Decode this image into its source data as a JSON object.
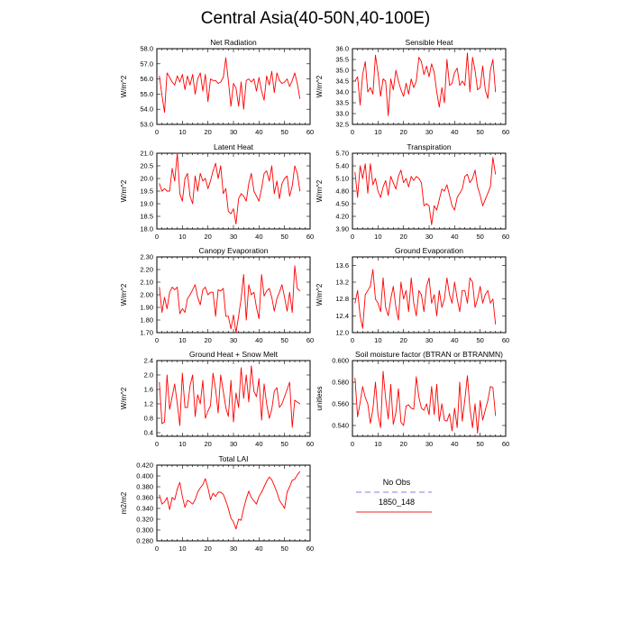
{
  "title": "Central Asia(40-50N,40-100E)",
  "legend": {
    "items": [
      {
        "label": "No Obs",
        "color": "#9999ee",
        "style": "dashed"
      },
      {
        "label": "1850_148",
        "color": "#ee5555",
        "style": "solid"
      }
    ]
  },
  "line_color": "#ff0000",
  "chart_data": [
    {
      "type": "line",
      "title": "Net Radiation",
      "xlabel": "",
      "ylabel": "W/m^2",
      "xlim": [
        0,
        60
      ],
      "ylim": [
        53.0,
        58.0
      ],
      "xticks": [
        "0",
        "10",
        "20",
        "30",
        "40",
        "50",
        "60"
      ],
      "yticks": [
        "53.0",
        "54.0",
        "55.0",
        "56.0",
        "57.0",
        "58.0"
      ],
      "series": [
        {
          "values": [
            56.2,
            54.9,
            53.8,
            56.4,
            56.1,
            55.8,
            55.6,
            56.2,
            55.8,
            56.3,
            55.3,
            56.2,
            55.6,
            56.3,
            55.0,
            56.0,
            56.4,
            55.2,
            56.3,
            54.5,
            56.0,
            55.9,
            55.9,
            55.7,
            55.8,
            56.1,
            57.4,
            55.9,
            54.2,
            55.7,
            55.4,
            54.2,
            55.8,
            54.0,
            55.9,
            56.0,
            55.8,
            56.0,
            55.2,
            56.1,
            55.2,
            54.6,
            56.2,
            55.6,
            56.5,
            55.1,
            56.4,
            55.9,
            55.7,
            55.8,
            56.0,
            55.5,
            55.9,
            56.4,
            55.7,
            54.7
          ]
        }
      ]
    },
    {
      "type": "line",
      "title": "Sensible Heat",
      "xlabel": "",
      "ylabel": "W/m^2",
      "xlim": [
        0,
        60
      ],
      "ylim": [
        32.5,
        36.0
      ],
      "xticks": [
        "0",
        "10",
        "20",
        "30",
        "40",
        "50",
        "60"
      ],
      "yticks": [
        "32.5",
        "33.0",
        "33.5",
        "34.0",
        "34.5",
        "35.0",
        "35.5",
        "36.0"
      ],
      "series": [
        {
          "values": [
            34.5,
            34.7,
            33.4,
            34.8,
            35.4,
            34.0,
            34.2,
            33.9,
            35.7,
            34.9,
            33.8,
            34.6,
            34.5,
            32.9,
            34.6,
            34.1,
            35.0,
            34.5,
            34.1,
            33.8,
            34.4,
            33.9,
            34.6,
            34.2,
            34.5,
            35.6,
            35.4,
            34.8,
            35.2,
            34.7,
            35.3,
            34.9,
            34.0,
            33.3,
            34.2,
            33.5,
            35.5,
            34.3,
            34.4,
            34.9,
            35.1,
            34.3,
            34.5,
            34.3,
            35.8,
            34.0,
            35.6,
            35.0,
            34.1,
            34.2,
            35.2,
            34.1,
            33.7,
            35.0,
            35.5,
            34.0
          ]
        }
      ]
    },
    {
      "type": "line",
      "title": "Latent Heat",
      "xlabel": "",
      "ylabel": "W/m^2",
      "xlim": [
        0,
        60
      ],
      "ylim": [
        18.0,
        21.0
      ],
      "xticks": [
        "0",
        "10",
        "20",
        "30",
        "40",
        "50",
        "60"
      ],
      "yticks": [
        "18.0",
        "18.5",
        "19.0",
        "19.5",
        "20.0",
        "20.5",
        "21.0"
      ],
      "series": [
        {
          "values": [
            19.8,
            19.5,
            19.6,
            19.5,
            19.5,
            20.4,
            19.9,
            21.0,
            19.4,
            19.1,
            20.0,
            20.2,
            19.3,
            19.0,
            20.1,
            19.5,
            20.2,
            19.9,
            20.0,
            19.6,
            19.9,
            20.3,
            20.6,
            20.0,
            20.5,
            19.4,
            19.6,
            18.7,
            18.6,
            18.8,
            18.2,
            19.2,
            19.4,
            19.3,
            19.1,
            19.8,
            20.2,
            19.5,
            19.3,
            19.1,
            19.6,
            20.2,
            20.3,
            19.9,
            20.5,
            19.4,
            19.9,
            19.2,
            19.8,
            20.0,
            20.1,
            19.3,
            19.7,
            20.5,
            20.2,
            19.5
          ]
        }
      ]
    },
    {
      "type": "line",
      "title": "Transpiration",
      "xlabel": "",
      "ylabel": "W/m^2",
      "xlim": [
        0,
        60
      ],
      "ylim": [
        3.9,
        5.7
      ],
      "xticks": [
        "0",
        "10",
        "20",
        "30",
        "40",
        "50",
        "60"
      ],
      "yticks": [
        "3.90",
        "4.20",
        "4.50",
        "4.80",
        "5.10",
        "5.40",
        "5.70"
      ],
      "series": [
        {
          "values": [
            5.25,
            4.65,
            5.4,
            5.1,
            5.45,
            4.75,
            5.45,
            4.95,
            5.1,
            4.8,
            4.65,
            4.9,
            5.05,
            4.7,
            5.15,
            5.0,
            4.85,
            5.15,
            5.3,
            5.0,
            5.1,
            4.9,
            5.15,
            5.05,
            5.15,
            5.1,
            5.0,
            4.45,
            4.5,
            4.45,
            4.0,
            4.45,
            4.35,
            4.6,
            4.85,
            4.8,
            4.95,
            4.7,
            4.45,
            4.35,
            4.65,
            4.75,
            4.85,
            5.15,
            5.2,
            5.0,
            5.1,
            5.3,
            4.9,
            4.7,
            4.45,
            4.6,
            4.75,
            4.9,
            5.6,
            5.2
          ]
        }
      ]
    },
    {
      "type": "line",
      "title": "Canopy Evaporation",
      "xlabel": "",
      "ylabel": "W/m^2",
      "xlim": [
        0,
        60
      ],
      "ylim": [
        1.7,
        2.3
      ],
      "xticks": [
        "0",
        "10",
        "20",
        "30",
        "40",
        "50",
        "60"
      ],
      "yticks": [
        "1.70",
        "1.80",
        "1.90",
        "2.00",
        "2.10",
        "2.20",
        "2.30"
      ],
      "series": [
        {
          "values": [
            2.06,
            1.86,
            1.98,
            1.89,
            2.02,
            2.06,
            2.04,
            2.06,
            1.85,
            1.89,
            1.86,
            1.97,
            2.0,
            2.04,
            2.08,
            1.98,
            1.92,
            2.04,
            2.06,
            2.0,
            2.02,
            2.02,
            1.83,
            2.04,
            2.03,
            2.05,
            1.83,
            1.83,
            1.73,
            1.84,
            1.7,
            1.83,
            1.97,
            2.16,
            1.8,
            2.08,
            2.0,
            2.02,
            1.9,
            1.81,
            2.16,
            1.99,
            2.03,
            2.05,
            1.98,
            1.87,
            1.97,
            2.02,
            2.08,
            1.98,
            1.87,
            2.02,
            1.86,
            2.23,
            2.05,
            2.03
          ]
        }
      ]
    },
    {
      "type": "line",
      "title": "Ground Evaporation",
      "xlabel": "",
      "ylabel": "W/m^2",
      "xlim": [
        0,
        60
      ],
      "ylim": [
        12.0,
        13.8
      ],
      "xticks": [
        "0",
        "10",
        "20",
        "30",
        "40",
        "50",
        "60"
      ],
      "yticks": [
        "12.0",
        "12.4",
        "12.8",
        "13.2",
        "13.6"
      ],
      "series": [
        {
          "values": [
            12.7,
            13.0,
            12.4,
            12.1,
            12.9,
            13.0,
            13.1,
            13.5,
            12.8,
            12.7,
            12.5,
            13.3,
            12.6,
            12.4,
            12.8,
            13.1,
            12.6,
            12.3,
            13.2,
            12.8,
            13.0,
            12.5,
            13.3,
            12.7,
            12.4,
            13.0,
            12.9,
            12.5,
            13.1,
            13.3,
            12.7,
            12.9,
            12.4,
            13.0,
            12.6,
            12.8,
            13.3,
            12.9,
            12.7,
            13.2,
            12.8,
            12.5,
            13.0,
            13.0,
            12.7,
            13.3,
            13.2,
            12.6,
            12.8,
            13.1,
            12.7,
            12.9,
            13.0,
            12.7,
            12.8,
            12.2
          ]
        }
      ]
    },
    {
      "type": "line",
      "title": "Ground Heat + Snow Melt",
      "xlabel": "",
      "ylabel": "W/m^2",
      "xlim": [
        0,
        60
      ],
      "ylim": [
        0.3,
        2.4
      ],
      "xticks": [
        "0",
        "10",
        "20",
        "30",
        "40",
        "50",
        "60"
      ],
      "yticks": [
        "0.4",
        "0.8",
        "1.2",
        "1.6",
        "2.0",
        "2.4"
      ],
      "series": [
        {
          "values": [
            1.8,
            0.65,
            0.7,
            2.0,
            1.05,
            1.4,
            1.75,
            1.2,
            0.6,
            2.05,
            1.1,
            1.1,
            1.7,
            2.0,
            0.85,
            1.45,
            1.2,
            1.85,
            0.8,
            1.0,
            1.15,
            2.05,
            1.6,
            0.95,
            2.0,
            1.55,
            1.1,
            0.85,
            1.85,
            0.7,
            1.5,
            1.1,
            2.2,
            1.35,
            2.0,
            1.25,
            2.25,
            1.55,
            1.4,
            1.9,
            0.75,
            1.75,
            1.2,
            0.8,
            1.05,
            1.55,
            1.65,
            1.1,
            1.2,
            1.4,
            1.6,
            1.8,
            0.55,
            1.3,
            1.25,
            1.2
          ]
        }
      ]
    },
    {
      "type": "line",
      "title": "Soil moisture factor (BTRAN or BTRANMN)",
      "xlabel": "",
      "ylabel": "unitless",
      "xlim": [
        0,
        60
      ],
      "ylim": [
        0.53,
        0.6
      ],
      "xticks": [
        "0",
        "10",
        "20",
        "30",
        "40",
        "50",
        "60"
      ],
      "yticks": [
        "0.540",
        "0.560",
        "0.580",
        "0.600"
      ],
      "series": [
        {
          "values": [
            0.584,
            0.548,
            0.561,
            0.576,
            0.566,
            0.56,
            0.542,
            0.555,
            0.58,
            0.55,
            0.538,
            0.59,
            0.565,
            0.546,
            0.578,
            0.541,
            0.552,
            0.574,
            0.543,
            0.54,
            0.558,
            0.559,
            0.556,
            0.555,
            0.585,
            0.566,
            0.556,
            0.554,
            0.56,
            0.55,
            0.576,
            0.55,
            0.578,
            0.544,
            0.56,
            0.545,
            0.544,
            0.551,
            0.535,
            0.556,
            0.538,
            0.58,
            0.544,
            0.564,
            0.586,
            0.556,
            0.538,
            0.56,
            0.533,
            0.563,
            0.545,
            0.554,
            0.563,
            0.576,
            0.575,
            0.549
          ]
        }
      ]
    },
    {
      "type": "line",
      "title": "Total LAI",
      "xlabel": "",
      "ylabel": "m2/m2",
      "xlim": [
        0,
        60
      ],
      "ylim": [
        0.28,
        0.42
      ],
      "xticks": [
        "0",
        "10",
        "20",
        "30",
        "40",
        "50",
        "60"
      ],
      "yticks": [
        "0.280",
        "0.300",
        "0.320",
        "0.340",
        "0.360",
        "0.380",
        "0.400",
        "0.420"
      ],
      "series": [
        {
          "values": [
            0.365,
            0.348,
            0.352,
            0.36,
            0.338,
            0.36,
            0.356,
            0.376,
            0.388,
            0.362,
            0.342,
            0.355,
            0.352,
            0.348,
            0.356,
            0.37,
            0.378,
            0.384,
            0.395,
            0.378,
            0.356,
            0.368,
            0.362,
            0.37,
            0.37,
            0.366,
            0.354,
            0.34,
            0.322,
            0.315,
            0.302,
            0.32,
            0.318,
            0.34,
            0.358,
            0.372,
            0.36,
            0.354,
            0.348,
            0.362,
            0.37,
            0.38,
            0.39,
            0.398,
            0.393,
            0.382,
            0.37,
            0.355,
            0.348,
            0.34,
            0.37,
            0.38,
            0.392,
            0.394,
            0.402,
            0.408
          ]
        }
      ]
    }
  ]
}
